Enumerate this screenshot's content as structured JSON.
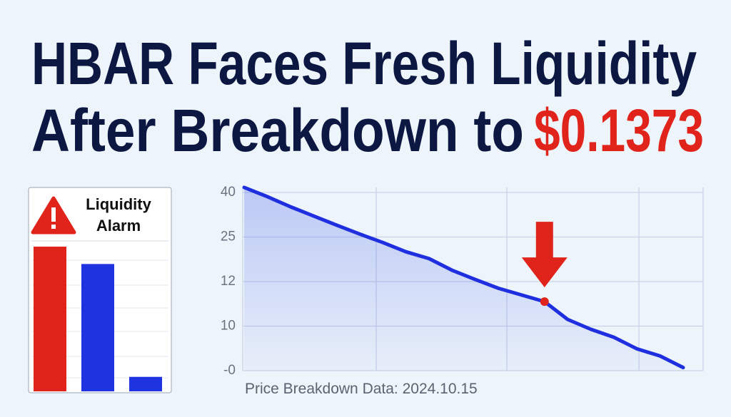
{
  "headline": {
    "line1": "HBAR Faces Fresh Liquidity",
    "line2": "After Breakdown to",
    "highlight": "$0.1373"
  },
  "chart_data": [
    {
      "type": "bar",
      "title": "Liquidity Alarm",
      "categories": [
        null,
        null,
        null
      ],
      "values": [
        100,
        88,
        10
      ],
      "colors": [
        "#e0231b",
        "#2033e0",
        "#2033e0"
      ],
      "ylim": [
        0,
        100
      ]
    },
    {
      "type": "line",
      "subtitle": "Price Breakdown Data: 2024.10.15",
      "values": [
        41.7,
        38.6,
        35.2,
        32.1,
        29.0,
        26.0,
        23.4,
        20.7,
        18.7,
        15.3,
        12.6,
        11.7,
        11.4,
        11.1,
        10.3,
        9.3,
        7.5,
        4.9,
        3.3,
        0.7
      ],
      "color": "#1f2fe0",
      "highlight_index": 13,
      "highlight_color": "#e0231b",
      "ylim": [
        0,
        41.7
      ],
      "yticks": [
        40,
        25,
        12,
        10,
        {
          "value": 0,
          "label": "-0"
        }
      ],
      "grid": true
    }
  ]
}
